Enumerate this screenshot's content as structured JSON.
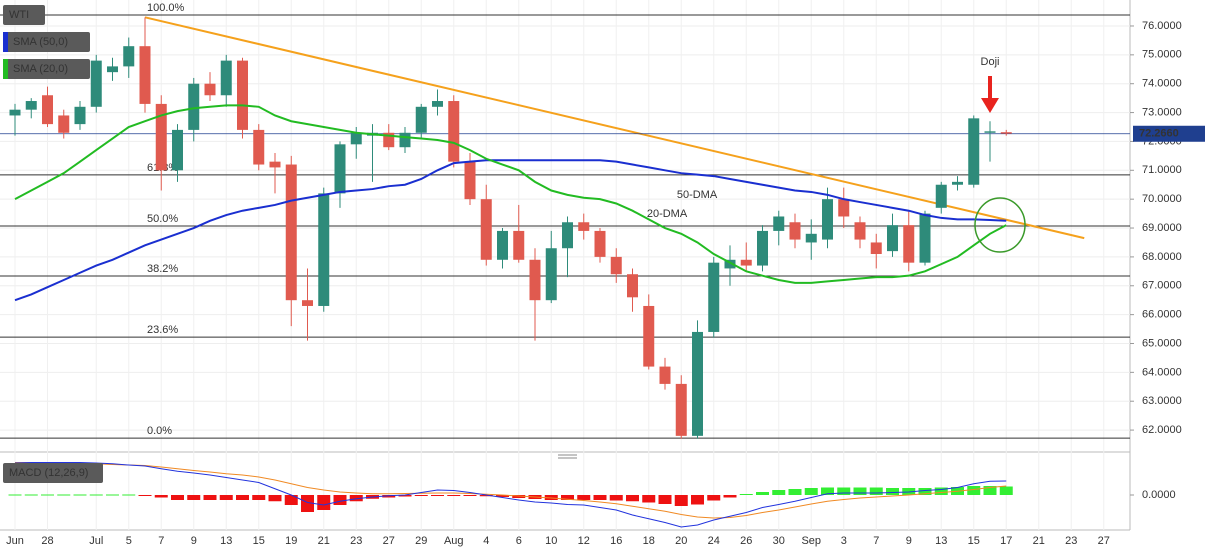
{
  "chart_data": {
    "type": "candlestick",
    "title": "WTI",
    "categories": [
      "Jun",
      null,
      "28",
      null,
      null,
      "Jul",
      null,
      "5",
      null,
      "7",
      null,
      "9",
      null,
      "13",
      null,
      "15",
      null,
      "19",
      null,
      "21",
      null,
      "23",
      null,
      "27",
      null,
      "29",
      null,
      "Aug",
      null,
      "4",
      null,
      "6",
      null,
      "10",
      null,
      "12",
      null,
      "16",
      null,
      "18",
      null,
      "20",
      null,
      "24",
      null,
      "26",
      null,
      "30",
      null,
      "Sep",
      null,
      "3",
      null,
      "7",
      null,
      "9",
      null,
      "13",
      null,
      "15",
      null,
      "17",
      null,
      "21",
      null,
      "23",
      null,
      "27"
    ],
    "open": [
      72.9,
      73.1,
      73.6,
      72.9,
      72.6,
      73.2,
      74.4,
      74.6,
      75.3,
      73.3,
      71.0,
      72.4,
      74.0,
      73.6,
      74.8,
      72.4,
      71.3,
      71.2,
      66.5,
      66.3,
      70.2,
      71.9,
      72.2,
      72.3,
      71.8,
      72.3,
      73.2,
      73.4,
      71.3,
      70.0,
      67.9,
      68.9,
      67.9,
      66.5,
      68.3,
      69.2,
      68.9,
      68.0,
      67.4,
      66.3,
      64.2,
      63.6,
      61.8,
      65.4,
      67.6,
      67.9,
      67.7,
      68.9,
      69.2,
      68.5,
      68.6,
      70.0,
      69.2,
      68.5,
      68.2,
      69.1,
      67.8,
      69.7,
      70.5,
      70.5,
      72.3,
      72.32,
      null,
      null,
      null,
      null,
      null,
      null
    ],
    "high": [
      73.3,
      73.5,
      73.9,
      73.1,
      73.4,
      75.0,
      74.9,
      75.6,
      76.3,
      73.6,
      72.6,
      74.2,
      74.4,
      75.0,
      74.9,
      72.6,
      71.6,
      71.5,
      67.6,
      70.4,
      72.0,
      72.5,
      72.6,
      72.6,
      72.5,
      73.3,
      73.8,
      73.6,
      71.6,
      70.5,
      69.0,
      69.8,
      68.3,
      68.9,
      69.4,
      69.5,
      69.0,
      68.3,
      67.6,
      66.7,
      64.5,
      63.9,
      65.8,
      68.0,
      68.4,
      68.5,
      69.1,
      69.6,
      69.5,
      69.3,
      70.4,
      70.4,
      69.4,
      68.8,
      69.5,
      69.6,
      69.6,
      70.6,
      70.8,
      72.9,
      72.7,
      72.4,
      null,
      null,
      null,
      null,
      null,
      null
    ],
    "low": [
      72.2,
      72.8,
      72.5,
      72.1,
      72.4,
      73.0,
      74.1,
      74.2,
      73.0,
      70.3,
      70.6,
      72.0,
      73.4,
      73.2,
      72.1,
      71.0,
      70.2,
      65.6,
      65.1,
      66.1,
      69.7,
      71.4,
      70.6,
      71.7,
      71.6,
      72.1,
      72.9,
      71.1,
      69.8,
      67.7,
      67.6,
      67.8,
      65.1,
      66.4,
      67.3,
      68.6,
      67.8,
      67.1,
      66.1,
      64.1,
      63.4,
      61.7,
      61.7,
      65.2,
      67.0,
      67.5,
      67.5,
      68.4,
      68.3,
      67.9,
      68.3,
      69.0,
      68.3,
      67.6,
      68.0,
      67.5,
      67.7,
      69.5,
      70.3,
      70.4,
      71.3,
      72.2,
      null,
      null,
      null,
      null,
      null,
      null
    ],
    "close": [
      73.1,
      73.4,
      72.6,
      72.3,
      73.2,
      74.8,
      74.6,
      75.3,
      73.3,
      71.0,
      72.4,
      74.0,
      73.6,
      74.8,
      72.4,
      71.2,
      71.1,
      66.5,
      66.3,
      70.2,
      71.9,
      72.3,
      72.3,
      71.8,
      72.3,
      73.2,
      73.4,
      71.3,
      70.0,
      67.9,
      68.9,
      67.9,
      66.5,
      68.3,
      69.2,
      68.9,
      68.0,
      67.4,
      66.6,
      64.2,
      63.6,
      61.8,
      65.4,
      67.8,
      67.9,
      67.7,
      68.9,
      69.4,
      68.6,
      68.8,
      70.0,
      69.4,
      68.6,
      68.1,
      69.1,
      67.8,
      69.5,
      70.5,
      70.6,
      72.8,
      72.35,
      72.27,
      null,
      null,
      null,
      null,
      null,
      null
    ],
    "up_color": "#2e8b7a",
    "down_color": "#e05a4f",
    "series": [
      {
        "name": "SMA (50,0)",
        "color": "#1a2fd0",
        "values": [
          66.5,
          66.7,
          66.95,
          67.2,
          67.45,
          67.7,
          67.9,
          68.15,
          68.4,
          68.6,
          68.8,
          69.0,
          69.25,
          69.45,
          69.6,
          69.7,
          69.8,
          69.95,
          70.05,
          70.15,
          70.25,
          70.3,
          70.35,
          70.45,
          70.5,
          70.7,
          71.0,
          71.25,
          71.3,
          71.35,
          71.35,
          71.35,
          71.35,
          71.35,
          71.35,
          71.35,
          71.35,
          71.3,
          71.2,
          71.1,
          71.0,
          70.9,
          70.85,
          70.8,
          70.7,
          70.6,
          70.5,
          70.4,
          70.3,
          70.25,
          70.15,
          70.0,
          69.9,
          69.8,
          69.7,
          69.6,
          69.45,
          69.35,
          69.3,
          69.3,
          69.28,
          69.25,
          null,
          null,
          null,
          null,
          null,
          null
        ]
      },
      {
        "name": "SMA (20,0)",
        "color": "#22bb22",
        "values": [
          70.0,
          70.3,
          70.6,
          70.9,
          71.3,
          71.7,
          72.1,
          72.5,
          72.7,
          72.9,
          73.05,
          73.15,
          73.2,
          73.25,
          73.25,
          73.2,
          72.9,
          72.7,
          72.6,
          72.5,
          72.4,
          72.3,
          72.25,
          72.2,
          72.15,
          72.1,
          72.05,
          71.95,
          71.7,
          71.4,
          71.2,
          71.0,
          70.6,
          70.3,
          70.15,
          70.05,
          70.0,
          69.85,
          69.6,
          69.3,
          69.0,
          68.8,
          68.5,
          68.1,
          67.8,
          67.5,
          67.35,
          67.2,
          67.1,
          67.1,
          67.15,
          67.2,
          67.25,
          67.3,
          67.3,
          67.35,
          67.5,
          67.75,
          68.0,
          68.4,
          68.8,
          69.1,
          null,
          null,
          null,
          null,
          null,
          null
        ]
      }
    ],
    "ylim": [
      61.31,
      76.9
    ],
    "yticks": [
      {
        "value": 62,
        "label": "62.0000"
      },
      {
        "value": 63,
        "label": "63.0000"
      },
      {
        "value": 64,
        "label": "64.0000"
      },
      {
        "value": 65,
        "label": "65.0000"
      },
      {
        "value": 66,
        "label": "66.0000"
      },
      {
        "value": 67,
        "label": "67.0000"
      },
      {
        "value": 68,
        "label": "68.0000"
      },
      {
        "value": 69,
        "label": "69.0000"
      },
      {
        "value": 70,
        "label": "70.0000"
      },
      {
        "value": 71,
        "label": "71.0000"
      },
      {
        "value": 72,
        "label": "72.0000"
      },
      {
        "value": 73,
        "label": "73.0000"
      },
      {
        "value": 74,
        "label": "74.0000"
      },
      {
        "value": 75,
        "label": "75.0000"
      },
      {
        "value": 76,
        "label": "76.0000"
      }
    ],
    "grid": true,
    "last_price": {
      "value": 72.266,
      "label": "72.2660",
      "color": "#1f3f8f"
    },
    "fib_levels": [
      {
        "label": "100.0%",
        "value": 76.38
      },
      {
        "label": "61.8%",
        "value": 70.84
      },
      {
        "label": "50.0%",
        "value": 69.07
      },
      {
        "label": "38.2%",
        "value": 67.34
      },
      {
        "label": "23.6%",
        "value": 65.22
      },
      {
        "label": "0.0%",
        "value": 61.72
      }
    ],
    "trendline": {
      "color": "#f5a11c",
      "x": [
        8,
        65.8
      ],
      "values": [
        76.3,
        68.65
      ]
    },
    "annotations": [
      {
        "text": "Doji",
        "color": "#e8231e"
      },
      {
        "text": "50-DMA",
        "color": "#6a6ad0"
      },
      {
        "text": "20-DMA",
        "color": "#22aa22"
      }
    ],
    "macd": {
      "name": "MACD (12,26,9)",
      "ylim": [
        -1.4,
        1.4
      ],
      "yticks": [
        {
          "value": 0,
          "label": "0.0000"
        }
      ],
      "up_color": "#33ee33",
      "down_color": "#ee1111",
      "histogram": [
        0.02,
        0.02,
        0.02,
        0.02,
        0.02,
        0.02,
        0.02,
        0.02,
        -0.04,
        -0.1,
        -0.2,
        -0.2,
        -0.2,
        -0.2,
        -0.2,
        -0.2,
        -0.25,
        -0.4,
        -0.68,
        -0.6,
        -0.4,
        -0.25,
        -0.15,
        -0.1,
        -0.06,
        -0.04,
        -0.02,
        -0.02,
        -0.03,
        -0.05,
        -0.08,
        -0.12,
        -0.16,
        -0.2,
        -0.2,
        -0.2,
        -0.2,
        -0.22,
        -0.25,
        -0.3,
        -0.36,
        -0.44,
        -0.38,
        -0.22,
        -0.1,
        0.04,
        0.12,
        0.2,
        0.24,
        0.28,
        0.3,
        0.3,
        0.3,
        0.3,
        0.28,
        0.28,
        0.28,
        0.3,
        0.32,
        0.36,
        0.36,
        0.34,
        null,
        null,
        null,
        null,
        null,
        null
      ],
      "macd_line": {
        "color": "#2233dd",
        "values": [
          1.28,
          1.3,
          1.3,
          1.3,
          1.3,
          1.28,
          1.25,
          1.2,
          1.16,
          1.05,
          0.95,
          0.88,
          0.8,
          0.7,
          0.6,
          0.5,
          0.25,
          0.0,
          -0.3,
          -0.4,
          -0.25,
          -0.15,
          -0.08,
          -0.03,
          0.0,
          0.1,
          0.2,
          0.18,
          0.1,
          0.0,
          -0.1,
          -0.2,
          -0.28,
          -0.32,
          -0.38,
          -0.4,
          -0.5,
          -0.6,
          -0.8,
          -0.95,
          -1.1,
          -1.28,
          -1.2,
          -1.0,
          -0.85,
          -0.7,
          -0.5,
          -0.38,
          -0.25,
          -0.1,
          0.05,
          0.08,
          0.08,
          0.08,
          0.1,
          0.12,
          0.18,
          0.22,
          0.3,
          0.45,
          0.55,
          0.56,
          null,
          null,
          null,
          null,
          null,
          null
        ]
      },
      "signal_line": {
        "color": "#f08a24",
        "values": [
          1.3,
          1.3,
          1.3,
          1.3,
          1.28,
          1.25,
          1.22,
          1.2,
          1.18,
          1.12,
          1.05,
          0.98,
          0.92,
          0.85,
          0.8,
          0.72,
          0.6,
          0.45,
          0.3,
          0.2,
          0.12,
          0.08,
          0.05,
          0.05,
          0.06,
          0.07,
          0.08,
          0.08,
          0.06,
          0.03,
          0.0,
          -0.04,
          -0.08,
          -0.12,
          -0.17,
          -0.22,
          -0.28,
          -0.35,
          -0.45,
          -0.55,
          -0.65,
          -0.78,
          -0.88,
          -0.92,
          -0.9,
          -0.82,
          -0.7,
          -0.6,
          -0.48,
          -0.36,
          -0.25,
          -0.18,
          -0.12,
          -0.08,
          -0.04,
          0.0,
          0.05,
          0.1,
          0.15,
          0.22,
          0.3,
          0.36,
          null,
          null,
          null,
          null,
          null,
          null
        ]
      }
    }
  }
}
